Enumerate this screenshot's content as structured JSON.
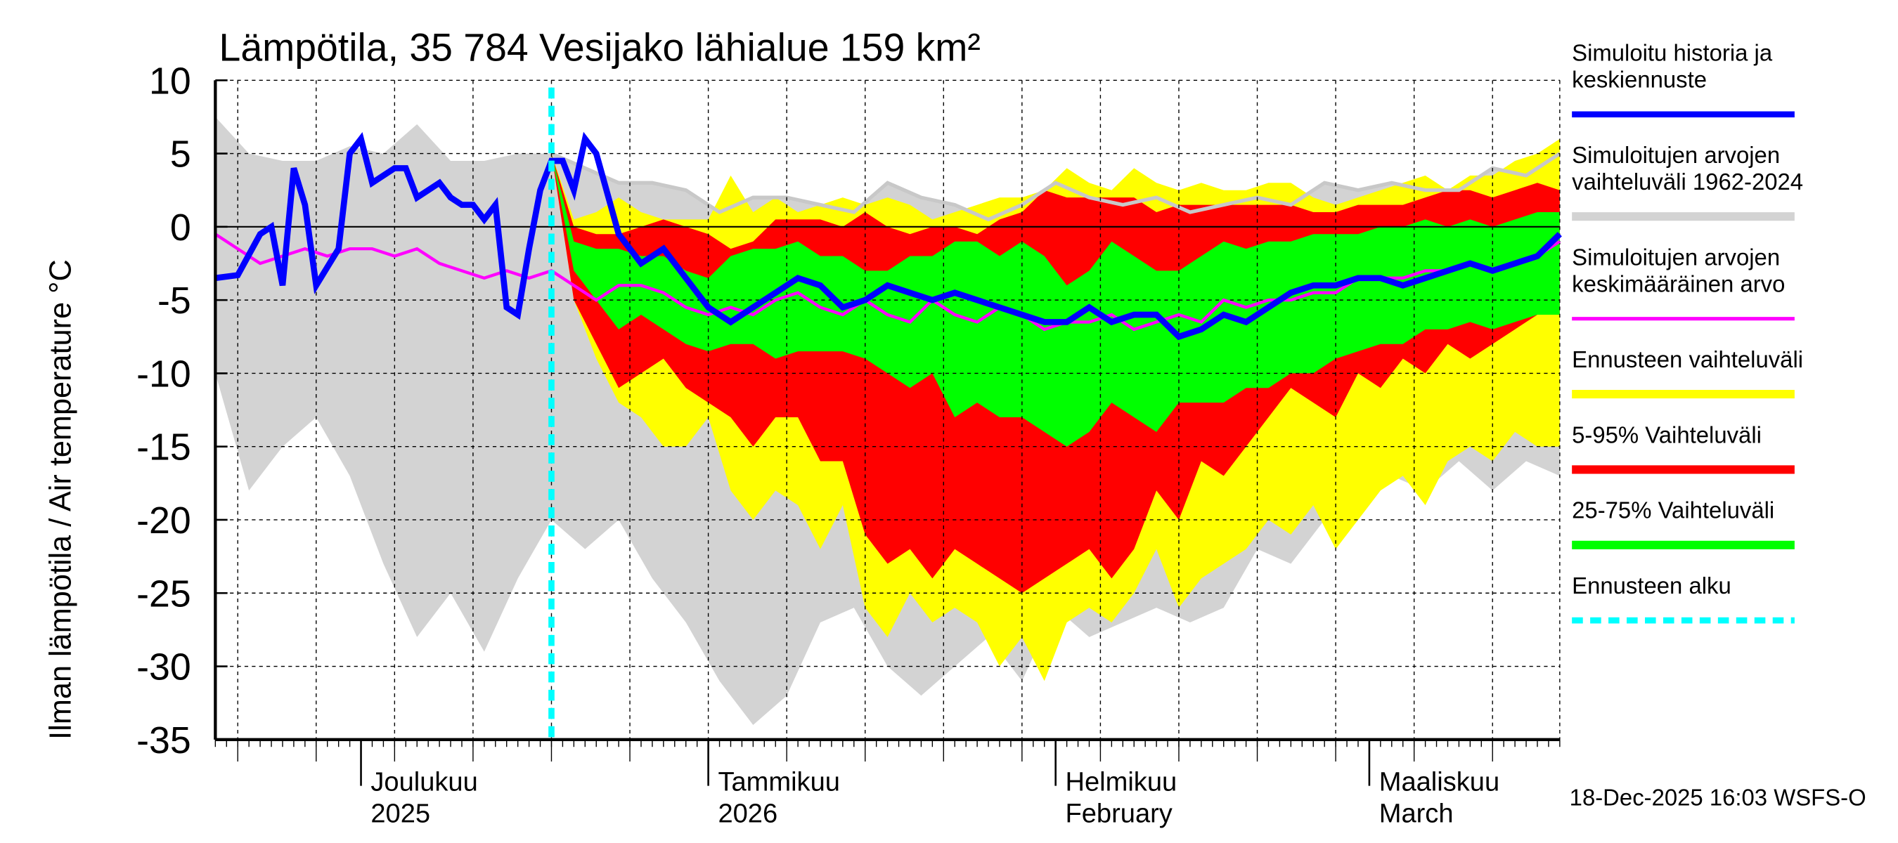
{
  "chart_data": {
    "type": "area",
    "title": "Lämpötila, 35 784 Vesijako lähialue 159 km²",
    "ylabel": "Ilman lämpötila / Air temperature   °C",
    "xlabel": "",
    "ylim": [
      -35,
      10
    ],
    "yticks": [
      10,
      5,
      0,
      -5,
      -10,
      -15,
      -20,
      -25,
      -30,
      -35
    ],
    "x_unit": "days since 2025-11-18",
    "xlim": [
      0,
      120
    ],
    "month_labels": [
      {
        "day": 13,
        "line1": "Joulukuu",
        "line2": "2025"
      },
      {
        "day": 44,
        "line1": "Tammikuu",
        "line2": "2026"
      },
      {
        "day": 75,
        "line1": "Helmikuu",
        "line2": "February"
      },
      {
        "day": 103,
        "line1": "Maaliskuu",
        "line2": "March"
      }
    ],
    "forecast_start_day": 30,
    "grid": true,
    "legend_position": "right",
    "footer": "18-Dec-2025 16:03 WSFS-O",
    "legend": [
      {
        "key": "sim",
        "label_lines": [
          "Simuloitu historia ja",
          "keskiennuste"
        ],
        "color": "#0000ff",
        "style": "line"
      },
      {
        "key": "hist_range",
        "label_lines": [
          "Simuloitujen arvojen",
          "vaihteluväli 1962-2024"
        ],
        "color": "#d3d3d3",
        "style": "band"
      },
      {
        "key": "hist_mean",
        "label_lines": [
          "Simuloitujen arvojen",
          "keskimääräinen arvo"
        ],
        "color": "#ff00ff",
        "style": "thinline"
      },
      {
        "key": "fc_range",
        "label_lines": [
          "Ennusteen vaihteluväli"
        ],
        "color": "#ffff00",
        "style": "band"
      },
      {
        "key": "p5_95",
        "label_lines": [
          "5-95% Vaihteluväli"
        ],
        "color": "#ff0000",
        "style": "band"
      },
      {
        "key": "p25_75",
        "label_lines": [
          "25-75% Vaihteluväli"
        ],
        "color": "#00ff00",
        "style": "band"
      },
      {
        "key": "fc_start",
        "label_lines": [
          "Ennusteen alku"
        ],
        "color": "#00ffff",
        "style": "dashed"
      }
    ],
    "series": [
      {
        "name": "Simuloitujen arvojen vaihteluväli 1962-2024 (max)",
        "x": [
          0,
          3,
          6,
          9,
          12,
          15,
          18,
          21,
          24,
          27,
          30,
          33,
          36,
          39,
          42,
          45,
          48,
          51,
          54,
          57,
          60,
          63,
          66,
          69,
          72,
          75,
          78,
          81,
          84,
          87,
          90,
          93,
          96,
          99,
          102,
          105,
          108,
          111,
          114,
          117,
          120
        ],
        "values": [
          7.5,
          5,
          4.5,
          4.5,
          5.5,
          5,
          7,
          4.5,
          4.5,
          5,
          5,
          4,
          3,
          3,
          2.5,
          1,
          2,
          2,
          1.5,
          1,
          3,
          2,
          1.5,
          0.5,
          1.5,
          3,
          2,
          1.5,
          2,
          1,
          1.5,
          2,
          1.5,
          3,
          2.5,
          3,
          2.5,
          2.5,
          4,
          3.5,
          5
        ]
      },
      {
        "name": "Simuloitujen arvojen vaihteluväli 1962-2024 (min)",
        "x": [
          0,
          3,
          6,
          9,
          12,
          15,
          18,
          21,
          24,
          27,
          30,
          33,
          36,
          39,
          42,
          45,
          48,
          51,
          54,
          57,
          60,
          63,
          66,
          69,
          72,
          75,
          78,
          81,
          84,
          87,
          90,
          93,
          96,
          99,
          102,
          105,
          108,
          111,
          114,
          117,
          120
        ],
        "values": [
          -10,
          -18,
          -15,
          -13,
          -17,
          -23,
          -28,
          -25,
          -29,
          -24,
          -20,
          -22,
          -20,
          -24,
          -27,
          -31,
          -34,
          -32,
          -27,
          -26,
          -30,
          -32,
          -30,
          -28,
          -31,
          -26,
          -28,
          -27,
          -26,
          -27,
          -26,
          -22,
          -23,
          -20,
          -20,
          -17,
          -18,
          -16,
          -18,
          -16,
          -17
        ]
      },
      {
        "name": "Ennusteen vaihteluväli (max)",
        "x": [
          30,
          32,
          34,
          36,
          38,
          40,
          42,
          44,
          46,
          48,
          50,
          52,
          54,
          56,
          58,
          60,
          62,
          64,
          66,
          68,
          70,
          72,
          74,
          76,
          78,
          80,
          82,
          84,
          86,
          88,
          90,
          92,
          94,
          96,
          98,
          100,
          102,
          104,
          106,
          108,
          110,
          112,
          114,
          116,
          118,
          120
        ],
        "values": [
          5,
          0.5,
          1,
          2,
          1,
          0.5,
          0.5,
          0.5,
          3.5,
          1,
          2,
          1,
          1.5,
          2,
          1.5,
          2,
          1.5,
          0.5,
          1,
          1.5,
          2,
          2,
          2.5,
          4,
          3,
          2.5,
          4,
          3,
          2.5,
          3,
          2.5,
          2.5,
          3,
          3,
          2,
          1.5,
          2,
          2.5,
          3,
          3.5,
          2.5,
          3.5,
          3.5,
          4.5,
          5,
          6
        ]
      },
      {
        "name": "Ennusteen vaihteluväli (min)",
        "x": [
          30,
          32,
          34,
          36,
          38,
          40,
          42,
          44,
          46,
          48,
          50,
          52,
          54,
          56,
          58,
          60,
          62,
          64,
          66,
          68,
          70,
          72,
          74,
          76,
          78,
          80,
          82,
          84,
          86,
          88,
          90,
          92,
          94,
          96,
          98,
          100,
          102,
          104,
          106,
          108,
          110,
          112,
          114,
          116,
          118,
          120
        ],
        "values": [
          5,
          -5,
          -9,
          -12,
          -13,
          -15,
          -15,
          -13,
          -18,
          -20,
          -18,
          -19,
          -22,
          -19,
          -26,
          -28,
          -25,
          -27,
          -26,
          -27,
          -30,
          -28,
          -31,
          -27,
          -26,
          -27,
          -25,
          -22,
          -26,
          -24,
          -23,
          -22,
          -20,
          -21,
          -19,
          -22,
          -20,
          -18,
          -17,
          -19,
          -16,
          -15,
          -16,
          -14,
          -15,
          -15
        ]
      },
      {
        "name": "5-95% Vaihteluväli (max)",
        "x": [
          30,
          32,
          34,
          36,
          38,
          40,
          42,
          44,
          46,
          48,
          50,
          52,
          54,
          56,
          58,
          60,
          62,
          64,
          66,
          68,
          70,
          72,
          74,
          76,
          78,
          80,
          82,
          84,
          86,
          88,
          90,
          92,
          94,
          96,
          98,
          100,
          102,
          104,
          106,
          108,
          110,
          112,
          114,
          116,
          118,
          120
        ],
        "values": [
          5,
          0,
          -0.5,
          -0.5,
          0,
          0.5,
          0,
          -0.5,
          -1.5,
          -1,
          0.5,
          0.5,
          0.5,
          0,
          1,
          0,
          -0.5,
          0,
          0,
          -0.5,
          0.5,
          1,
          2.5,
          2,
          2,
          2,
          2,
          1,
          1.5,
          1.5,
          1.5,
          1.5,
          1.5,
          1.5,
          1,
          1,
          1.5,
          1.5,
          1.5,
          2,
          2.5,
          2.5,
          2,
          2.5,
          3,
          2.5
        ]
      },
      {
        "name": "5-95% Vaihteluväli (min)",
        "x": [
          30,
          32,
          34,
          36,
          38,
          40,
          42,
          44,
          46,
          48,
          50,
          52,
          54,
          56,
          58,
          60,
          62,
          64,
          66,
          68,
          70,
          72,
          74,
          76,
          78,
          80,
          82,
          84,
          86,
          88,
          90,
          92,
          94,
          96,
          98,
          100,
          102,
          104,
          106,
          108,
          110,
          112,
          114,
          116,
          118,
          120
        ],
        "values": [
          5,
          -5,
          -8,
          -11,
          -10,
          -9,
          -11,
          -12,
          -13,
          -15,
          -13,
          -13,
          -16,
          -16,
          -21,
          -23,
          -22,
          -24,
          -22,
          -23,
          -24,
          -25,
          -24,
          -23,
          -22,
          -24,
          -22,
          -18,
          -20,
          -16,
          -17,
          -15,
          -13,
          -11,
          -12,
          -13,
          -10,
          -11,
          -9,
          -10,
          -8,
          -9,
          -8,
          -7,
          -6,
          -6
        ]
      },
      {
        "name": "25-75% Vaihteluväli (max)",
        "x": [
          30,
          32,
          34,
          36,
          38,
          40,
          42,
          44,
          46,
          48,
          50,
          52,
          54,
          56,
          58,
          60,
          62,
          64,
          66,
          68,
          70,
          72,
          74,
          76,
          78,
          80,
          82,
          84,
          86,
          88,
          90,
          92,
          94,
          96,
          98,
          100,
          102,
          104,
          106,
          108,
          110,
          112,
          114,
          116,
          118,
          120
        ],
        "values": [
          5,
          -1,
          -1.5,
          -1.5,
          -2,
          -2,
          -3,
          -3.5,
          -2,
          -1.5,
          -1.5,
          -1,
          -2,
          -2,
          -3,
          -3,
          -2,
          -2,
          -1,
          -1,
          -2,
          -1,
          -2,
          -4,
          -3,
          -1,
          -2,
          -3,
          -3,
          -2,
          -1,
          -1.5,
          -1,
          -1,
          -0.5,
          -0.5,
          -0.5,
          0,
          0,
          0.5,
          0,
          0.5,
          0,
          0.5,
          1,
          1
        ]
      },
      {
        "name": "25-75% Vaihteluväli (min)",
        "x": [
          30,
          32,
          34,
          36,
          38,
          40,
          42,
          44,
          46,
          48,
          50,
          52,
          54,
          56,
          58,
          60,
          62,
          64,
          66,
          68,
          70,
          72,
          74,
          76,
          78,
          80,
          82,
          84,
          86,
          88,
          90,
          92,
          94,
          96,
          98,
          100,
          102,
          104,
          106,
          108,
          110,
          112,
          114,
          116,
          118,
          120
        ],
        "values": [
          5,
          -3,
          -5,
          -7,
          -6,
          -7,
          -8,
          -8.5,
          -8,
          -8,
          -9,
          -8.5,
          -8.5,
          -8.5,
          -9,
          -10,
          -11,
          -10,
          -13,
          -12,
          -13,
          -13,
          -14,
          -15,
          -14,
          -12,
          -13,
          -14,
          -12,
          -12,
          -12,
          -11,
          -11,
          -10,
          -10,
          -9,
          -8.5,
          -8,
          -8,
          -7,
          -7,
          -6.5,
          -7,
          -6.5,
          -6,
          -6
        ]
      },
      {
        "name": "Simuloitu historia ja keskiennuste",
        "x": [
          0,
          2,
          4,
          5,
          6,
          7,
          8,
          9,
          11,
          12,
          13,
          14,
          16,
          17,
          18,
          19,
          20,
          21,
          22,
          23,
          24,
          25,
          26,
          27,
          28,
          29,
          30,
          31,
          32,
          33,
          34,
          36,
          38,
          40,
          42,
          44,
          46,
          48,
          50,
          52,
          54,
          56,
          58,
          60,
          62,
          64,
          66,
          68,
          70,
          72,
          74,
          76,
          78,
          80,
          82,
          84,
          86,
          88,
          90,
          92,
          94,
          96,
          98,
          100,
          102,
          104,
          106,
          108,
          110,
          112,
          114,
          116,
          118,
          120
        ],
        "values": [
          -3.5,
          -3.3,
          -0.5,
          0,
          -4,
          4,
          1.5,
          -4,
          -1.5,
          5,
          6,
          3,
          4,
          4,
          2,
          2.5,
          3,
          2,
          1.5,
          1.5,
          0.5,
          1.5,
          -5.5,
          -6,
          -1.5,
          2.5,
          4.5,
          4.5,
          2.5,
          6,
          5,
          -0.5,
          -2.5,
          -1.5,
          -3.5,
          -5.5,
          -6.5,
          -5.5,
          -4.5,
          -3.5,
          -4,
          -5.5,
          -5,
          -4,
          -4.5,
          -5,
          -4.5,
          -5,
          -5.5,
          -6,
          -6.5,
          -6.5,
          -5.5,
          -6.5,
          -6,
          -6,
          -7.5,
          -7,
          -6,
          -6.5,
          -5.5,
          -4.5,
          -4,
          -4,
          -3.5,
          -3.5,
          -4,
          -3.5,
          -3,
          -2.5,
          -3,
          -2.5,
          -2,
          -0.5
        ]
      },
      {
        "name": "Simuloitujen arvojen keskimääräinen arvo",
        "x": [
          0,
          2,
          4,
          6,
          8,
          10,
          12,
          14,
          16,
          18,
          20,
          22,
          24,
          26,
          28,
          30,
          32,
          34,
          36,
          38,
          40,
          42,
          44,
          46,
          48,
          50,
          52,
          54,
          56,
          58,
          60,
          62,
          64,
          66,
          68,
          70,
          72,
          74,
          76,
          78,
          80,
          82,
          84,
          86,
          88,
          90,
          92,
          94,
          96,
          98,
          100,
          102,
          104,
          106,
          108,
          110,
          112,
          114,
          116,
          118,
          120
        ],
        "values": [
          -0.5,
          -1.5,
          -2.5,
          -2,
          -1.5,
          -2,
          -1.5,
          -1.5,
          -2,
          -1.5,
          -2.5,
          -3,
          -3.5,
          -3,
          -3.5,
          -3,
          -4,
          -5,
          -4,
          -4,
          -4.5,
          -5.5,
          -6,
          -5.5,
          -6,
          -5,
          -4.5,
          -5.5,
          -6,
          -5,
          -6,
          -6.5,
          -5,
          -6,
          -6.5,
          -5.5,
          -6,
          -7,
          -6.5,
          -6.5,
          -6,
          -7,
          -6.5,
          -6,
          -6.5,
          -5,
          -5.5,
          -5,
          -5,
          -4.5,
          -4.5,
          -3.5,
          -3.5,
          -3.5,
          -3,
          -3,
          -2.5,
          -3,
          -2.5,
          -2,
          -1
        ]
      }
    ]
  }
}
